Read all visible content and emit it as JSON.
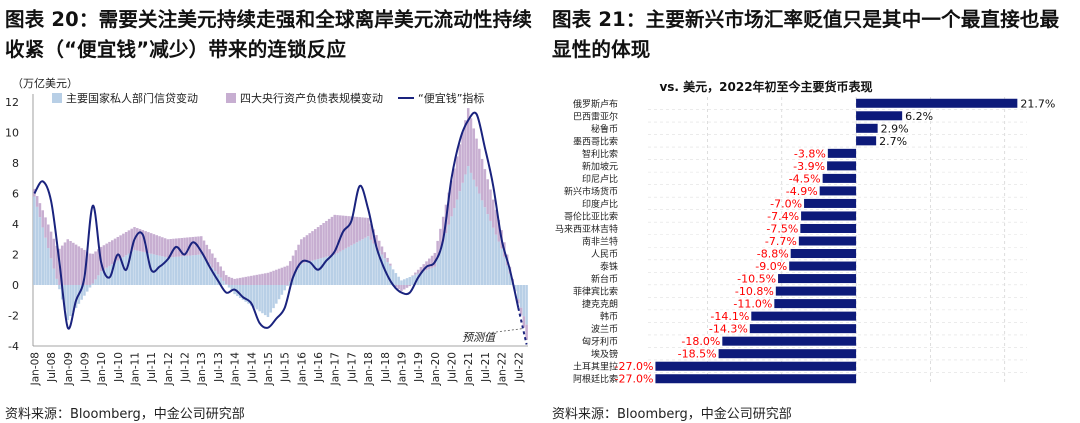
{
  "left_panel": {
    "title": "图表 20：需要关注美元持续走强和全球离岸美元流动性持续收紧（“便宜钱”减少）带来的连锁反应",
    "source": "资料来源：Bloomberg，中金公司研究部"
  },
  "right_panel": {
    "title": "图表 21：主要新兴市场汇率贬值只是其中一个最直接也最显性的体现",
    "source": "资料来源：Bloomberg，中金公司研究部"
  },
  "colors": {
    "private_credit": "#b8cfe6",
    "cb_balance": "#c7aed1",
    "cheap_money_line": "#1a237e",
    "bar_fill": "#0d1a7a",
    "negative_label": "#ff0000",
    "positive_label": "#111111"
  },
  "chart_data": [
    {
      "type": "line",
      "ylabel": "（万亿美元）",
      "ylim": [
        -4,
        12
      ],
      "yticks": [
        -4,
        -2,
        0,
        2,
        4,
        6,
        8,
        10,
        12
      ],
      "xtick_labels": [
        "Jan-08",
        "Jul-08",
        "Jan-09",
        "Jul-09",
        "Jan-10",
        "Jul-10",
        "Jan-11",
        "Jul-11",
        "Jan-12",
        "Jul-12",
        "Jan-13",
        "Jul-13",
        "Jan-14",
        "Jul-14",
        "Jan-15",
        "Jul-15",
        "Jan-16",
        "Jul-16",
        "Jan-17",
        "Jul-17",
        "Jan-18",
        "Jul-18",
        "Jan-19",
        "Jul-19",
        "Jan-20",
        "Jul-20",
        "Jan-21",
        "Jul-21",
        "Jan-22",
        "Jul-22"
      ],
      "legend": [
        "主要国家私人部门信贷变动",
        "四大央行资产负债表规模变动",
        "“便宜钱”指标"
      ],
      "annotation": "预测值",
      "grid": false,
      "series": [
        {
          "name": "“便宜钱”指标",
          "x": [
            "Jan-08",
            "Apr-08",
            "Jul-08",
            "Oct-08",
            "Jan-09",
            "Apr-09",
            "Jul-09",
            "Oct-09",
            "Jan-10",
            "Apr-10",
            "Jul-10",
            "Oct-10",
            "Jan-11",
            "Apr-11",
            "Jul-11",
            "Oct-11",
            "Jan-12",
            "Apr-12",
            "Jul-12",
            "Oct-12",
            "Jan-13",
            "Apr-13",
            "Jul-13",
            "Oct-13",
            "Jan-14",
            "Apr-14",
            "Jul-14",
            "Oct-14",
            "Jan-15",
            "Apr-15",
            "Jul-15",
            "Oct-15",
            "Jan-16",
            "Apr-16",
            "Jul-16",
            "Oct-16",
            "Jan-17",
            "Apr-17",
            "Jul-17",
            "Oct-17",
            "Jan-18",
            "Apr-18",
            "Jul-18",
            "Oct-18",
            "Jan-19",
            "Apr-19",
            "Jul-19",
            "Oct-19",
            "Jan-20",
            "Apr-20",
            "Jul-20",
            "Oct-20",
            "Jan-21",
            "Apr-21",
            "Jul-21",
            "Oct-21",
            "Jan-22",
            "Apr-22",
            "Jul-22",
            "Oct-22"
          ],
          "values": [
            6.0,
            6.8,
            5.5,
            1.5,
            -2.8,
            -1.0,
            0.5,
            5.2,
            1.5,
            0.5,
            2.0,
            1.0,
            3.0,
            3.3,
            1.0,
            1.2,
            1.7,
            2.5,
            2.0,
            2.8,
            2.2,
            1.2,
            0.3,
            -0.5,
            -0.3,
            -0.8,
            -1.2,
            -2.5,
            -2.8,
            -2.2,
            -1.5,
            0.5,
            1.5,
            1.5,
            1.0,
            1.6,
            2.2,
            3.5,
            4.2,
            6.5,
            5.0,
            2.5,
            1.0,
            0.0,
            -0.5,
            -0.5,
            0.5,
            1.2,
            1.5,
            3.0,
            7.0,
            9.5,
            10.8,
            11.2,
            9.0,
            6.5,
            3.0,
            1.0,
            -1.5,
            -3.9
          ]
        },
        {
          "name": "主要国家私人部门信贷变动",
          "x": [
            "Jan-08",
            "Jan-09",
            "Jan-10",
            "Jan-11",
            "Jan-12",
            "Jan-13",
            "Jan-14",
            "Jan-15",
            "Jan-16",
            "Jan-17",
            "Jan-18",
            "Jan-19",
            "Jan-20",
            "Jan-21",
            "Jan-22",
            "Oct-22"
          ],
          "values": [
            5.8,
            -2.3,
            0.9,
            2.3,
            1.8,
            2.0,
            -0.6,
            -2.1,
            1.4,
            2.0,
            3.2,
            0.3,
            1.2,
            7.8,
            2.4,
            -2.6
          ]
        },
        {
          "name": "四大央行资产负债表规模变动",
          "x": [
            "Jan-08",
            "Jan-09",
            "Jan-10",
            "Jan-11",
            "Jan-12",
            "Jan-13",
            "Jan-14",
            "Jan-15",
            "Jan-16",
            "Jan-17",
            "Jan-18",
            "Jan-19",
            "Jan-20",
            "Jan-21",
            "Jan-22",
            "Oct-22"
          ],
          "values": [
            0.5,
            3.0,
            1.6,
            1.5,
            1.2,
            1.2,
            0.4,
            0.8,
            1.6,
            2.6,
            1.2,
            -0.4,
            0.9,
            3.8,
            1.2,
            -1.0
          ]
        }
      ]
    },
    {
      "type": "bar",
      "orientation": "horizontal",
      "title": "vs. 美元，2022年初至今主要货币表现",
      "categories": [
        "俄罗斯卢布",
        "巴西雷亚尔",
        "秘鲁币",
        "墨西哥比索",
        "智利比索",
        "新加坡元",
        "印尼卢比",
        "新兴市场货币",
        "印度卢比",
        "哥伦比亚比索",
        "马来西亚林吉特",
        "南非兰特",
        "人民币",
        "泰铢",
        "新台币",
        "菲律宾比索",
        "捷克克朗",
        "韩币",
        "波兰币",
        "匈牙利币",
        "埃及镑",
        "土耳其里拉",
        "阿根廷比索"
      ],
      "values": [
        21.7,
        6.2,
        2.9,
        2.7,
        -3.8,
        -3.9,
        -4.5,
        -4.9,
        -7.0,
        -7.4,
        -7.5,
        -7.7,
        -8.8,
        -9.0,
        -10.5,
        -10.8,
        -11.0,
        -14.1,
        -14.3,
        -18.0,
        -18.5,
        -27.0,
        -27.0
      ],
      "data_labels": [
        "21.7%",
        "6.2%",
        "2.9%",
        "2.7%",
        "-3.8%",
        "-3.9%",
        "-4.5%",
        "-4.9%",
        "-7.0%",
        "-7.4%",
        "-7.5%",
        "-7.7%",
        "-8.8%",
        "-9.0%",
        "-10.5%",
        "-10.8%",
        "-11.0%",
        "-14.1%",
        "-14.3%",
        "-18.0%",
        "-18.5%",
        "-27.0%",
        "-27.0%"
      ],
      "xlim": [
        -28,
        23
      ],
      "grid": true
    }
  ]
}
